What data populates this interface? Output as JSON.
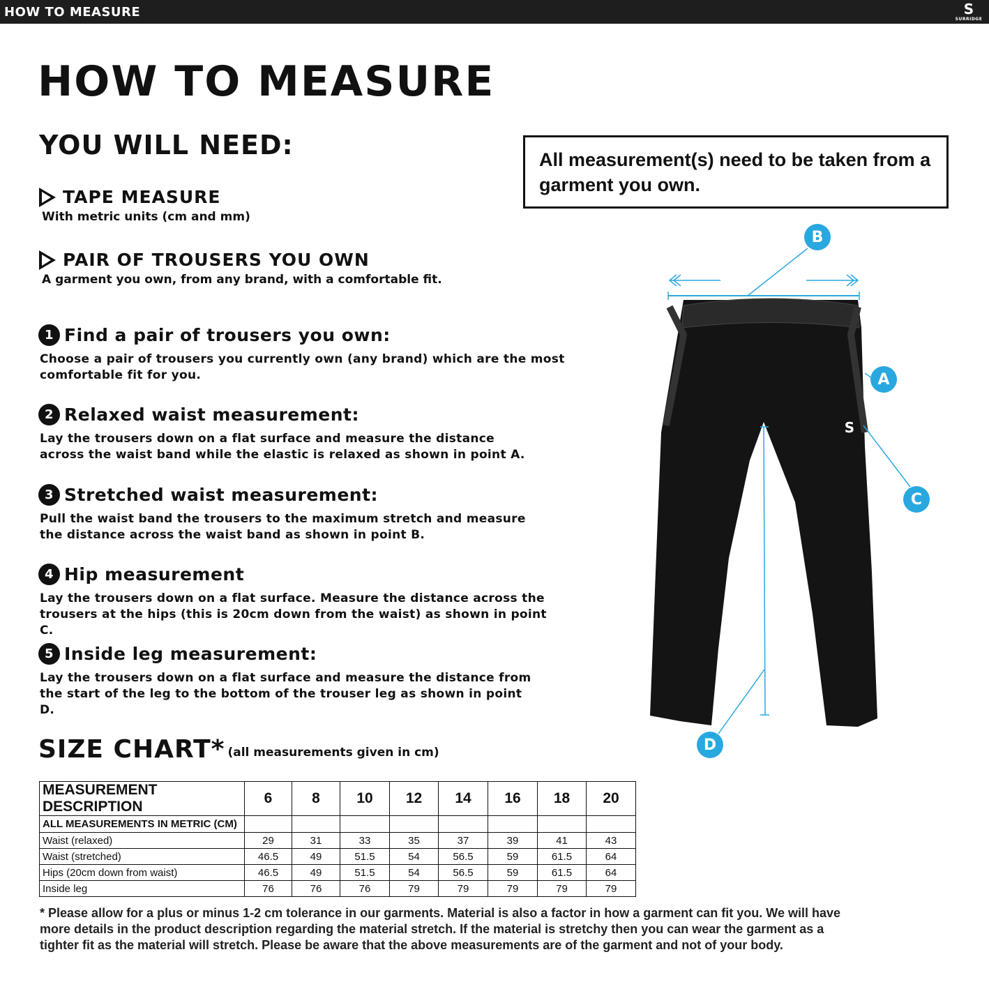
{
  "header": {
    "title": "HOW TO MEASURE",
    "logo_text": "SURRIDGE"
  },
  "title": "HOW TO MEASURE",
  "need_title": "YOU WILL NEED:",
  "needs": [
    {
      "title": "TAPE MEASURE",
      "text": "With metric units (cm and mm)"
    },
    {
      "title": "PAIR OF TROUSERS YOU OWN",
      "text": "A garment you own, from any brand, with a comfortable fit."
    }
  ],
  "note": "All measurement(s) need to be taken from a garment you own.",
  "steps": [
    {
      "num": "1",
      "title": "Find a pair of trousers you own:",
      "text": "Choose a pair of trousers you currently own (any brand) which are the most comfortable fit for you."
    },
    {
      "num": "2",
      "title": "Relaxed waist measurement:",
      "text": "Lay the trousers down on a flat surface and measure the distance across the waist band while the elastic is relaxed as shown in point A."
    },
    {
      "num": "3",
      "title": "Stretched waist measurement:",
      "text": "Pull the waist band the trousers to the maximum stretch and measure the distance across the waist band as shown in point B."
    },
    {
      "num": "4",
      "title": "Hip measurement",
      "text": "Lay the trousers down on a flat surface. Measure the distance across the trousers at the hips (this is 20cm down from the waist) as shown in point C."
    },
    {
      "num": "5",
      "title": "Inside leg measurement:",
      "text": "Lay the trousers down on a flat surface and measure the distance from the start of the leg to the bottom of the trouser leg as shown in point D."
    }
  ],
  "diagram": {
    "labels": [
      "A",
      "B",
      "C",
      "D"
    ],
    "accent": "#29a8e0",
    "garment_logo": "SURRIDGE"
  },
  "size_chart": {
    "title": "SIZE CHART*",
    "subtitle": "(all measurements given in cm)",
    "header": [
      "MEASUREMENT DESCRIPTION",
      "6",
      "8",
      "10",
      "12",
      "14",
      "16",
      "18",
      "20"
    ],
    "subheader": "ALL MEASUREMENTS IN METRIC (CM)",
    "rows": [
      {
        "label": "Waist (relaxed)",
        "values": [
          "29",
          "31",
          "33",
          "35",
          "37",
          "39",
          "41",
          "43"
        ]
      },
      {
        "label": "Waist (stretched)",
        "values": [
          "46.5",
          "49",
          "51.5",
          "54",
          "56.5",
          "59",
          "61.5",
          "64"
        ]
      },
      {
        "label": "Hips (20cm down from waist)",
        "values": [
          "46.5",
          "49",
          "51.5",
          "54",
          "56.5",
          "59",
          "61.5",
          "64"
        ]
      },
      {
        "label": "Inside leg",
        "values": [
          "76",
          "76",
          "76",
          "79",
          "79",
          "79",
          "79",
          "79"
        ]
      }
    ]
  },
  "footnote": "* Please allow for a plus or minus 1-2 cm tolerance in our garments. Material is also a factor in how a garment can fit you. We will have more details in the product description regarding the material stretch.  If the material is stretchy then you can wear the garment as a tighter fit as the material will stretch.  Please be aware that the above measurements are of the garment and not of your body."
}
